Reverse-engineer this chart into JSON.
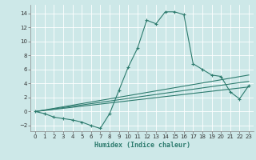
{
  "xlabel": "Humidex (Indice chaleur)",
  "bg_color": "#cde8e8",
  "line_color": "#2d7b6e",
  "grid_color": "#ffffff",
  "xlim": [
    -0.5,
    23.5
  ],
  "ylim": [
    -2.8,
    15.2
  ],
  "xticks": [
    0,
    1,
    2,
    3,
    4,
    5,
    6,
    7,
    8,
    9,
    10,
    11,
    12,
    13,
    14,
    15,
    16,
    17,
    18,
    19,
    20,
    21,
    22,
    23
  ],
  "yticks": [
    -2,
    0,
    2,
    4,
    6,
    8,
    10,
    12,
    14
  ],
  "series": [
    {
      "x": [
        0,
        1,
        2,
        3,
        4,
        5,
        6,
        7,
        8,
        9,
        10,
        11,
        12,
        13,
        14,
        15,
        16,
        17,
        18,
        19,
        20,
        21,
        22,
        23
      ],
      "y": [
        0,
        -0.3,
        -0.8,
        -1.0,
        -1.2,
        -1.5,
        -2.0,
        -2.4,
        -0.3,
        3.0,
        6.3,
        9.0,
        13.0,
        12.5,
        14.2,
        14.2,
        13.8,
        6.8,
        6.0,
        5.2,
        5.0,
        2.8,
        1.8,
        3.7
      ],
      "marker": true
    },
    {
      "x": [
        0,
        23
      ],
      "y": [
        0,
        5.2
      ],
      "marker": false
    },
    {
      "x": [
        0,
        23
      ],
      "y": [
        0,
        4.3
      ],
      "marker": false
    },
    {
      "x": [
        0,
        23
      ],
      "y": [
        0,
        3.5
      ],
      "marker": false
    }
  ]
}
